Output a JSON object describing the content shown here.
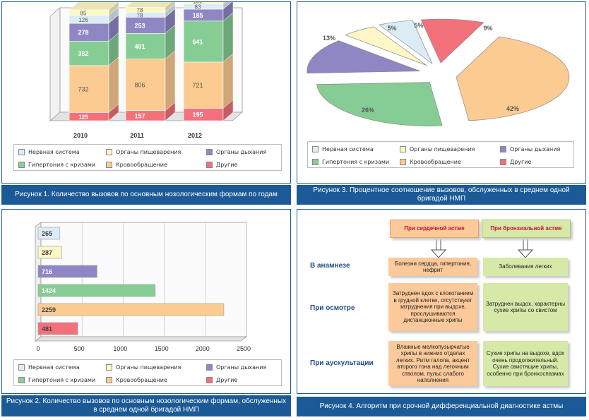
{
  "colors": {
    "nerv": "#dcecf5",
    "pishch": "#fdf6c5",
    "dykh": "#8f86c4",
    "gipert": "#86cd95",
    "krovo": "#fccb91",
    "drugie": "#f2717b",
    "caption_bg": "#1b5a96",
    "panel_border": "#1f5e9c",
    "algo_orange": "#fcc99a",
    "algo_green": "#d6e9a8"
  },
  "legend": {
    "nerv": "Нервная система",
    "pishch": "Органы пищеварения",
    "dykh": "Органы дыхания",
    "gipert": "Гипертония с кризами",
    "krovo": "Кровообращение",
    "drugie": "Другие"
  },
  "captions": {
    "fig1": "Рисунок 1.  Количество вызовов по основным нозологическим формам по годам",
    "fig2": "Рисунок 2.  Количество вызовов по основным нозологическим формам, обслуженных в среднем одной бригадой НМП",
    "fig3": "Рисунок 3.  Процентное соотношение вызовов, обслуженных в среднем одной бригадой НМП",
    "fig4": "Рисунок 4.  Алгоритм при срочной дифференциальной диагностике астмы"
  },
  "chart_data": [
    {
      "type": "bar",
      "stacked": true,
      "categories": [
        "2010",
        "2011",
        "2012"
      ],
      "series": [
        {
          "name": "Другие",
          "values": [
            129,
            157,
            195
          ]
        },
        {
          "name": "Кровообращение",
          "values": [
            732,
            806,
            721
          ]
        },
        {
          "name": "Гипертония с кризами",
          "values": [
            382,
            401,
            641
          ]
        },
        {
          "name": "Органы дыхания",
          "values": [
            278,
            253,
            185
          ]
        },
        {
          "name": "Нервная система",
          "values": [
            126,
            78,
            83
          ]
        },
        {
          "name": "Органы пищеварения",
          "values": [
            85,
            78,
            102
          ]
        }
      ],
      "legend_position": "bottom"
    },
    {
      "type": "bar",
      "orientation": "horizontal",
      "categories": [
        "Нервная система",
        "Органы пищеварения",
        "Органы дыхания",
        "Гипертония с кризами",
        "Кровообращение",
        "Другие"
      ],
      "values": [
        265,
        287,
        716,
        1424,
        2259,
        481
      ],
      "xlim": [
        0,
        2500
      ],
      "xticks": [
        "0",
        "500",
        "1000",
        "1500",
        "2000",
        "2500"
      ],
      "grid": true,
      "legend_position": "bottom"
    },
    {
      "type": "pie",
      "labels": [
        "Нервная система",
        "Органы пищеварения",
        "Органы дыхания",
        "Гипертония с кризами",
        "Кровообращение",
        "Другие"
      ],
      "values": [
        5,
        5,
        13,
        26,
        42,
        9
      ],
      "value_labels": [
        "5%",
        "5%",
        "13%",
        "26%",
        "42%",
        "9%"
      ],
      "legend_position": "bottom"
    }
  ],
  "algorithm": {
    "header_cardiac": "При сердечной астме",
    "header_bronchial": "При бронхиальной астме",
    "rows": [
      {
        "label": "В анамнезе",
        "cardiac": "Болезни сердца, гипертония, нефрит",
        "bronchial": "Заболевания легких"
      },
      {
        "label": "При осмотре",
        "cardiac": "Затруднен вдох с клокотанием в грудной клетке, отсутствуют затруднения при выдохе, прослушиваются дистанционные хрипы",
        "bronchial": "Затруднен выдох, характерны сухие хрипы со свистом"
      },
      {
        "label": "При аускультации",
        "cardiac": "Влажные мелкопузырчатые хрипы в нижних отделах легких. Ритм галопа, акцент второго тона над легочным стволом, пульс слабого наполнения",
        "bronchial": "Сухие хрипы на выдохе, вдох очень продолжительный. Сухие свистящие хрипы, особенно при бронхоспазмах"
      }
    ]
  }
}
